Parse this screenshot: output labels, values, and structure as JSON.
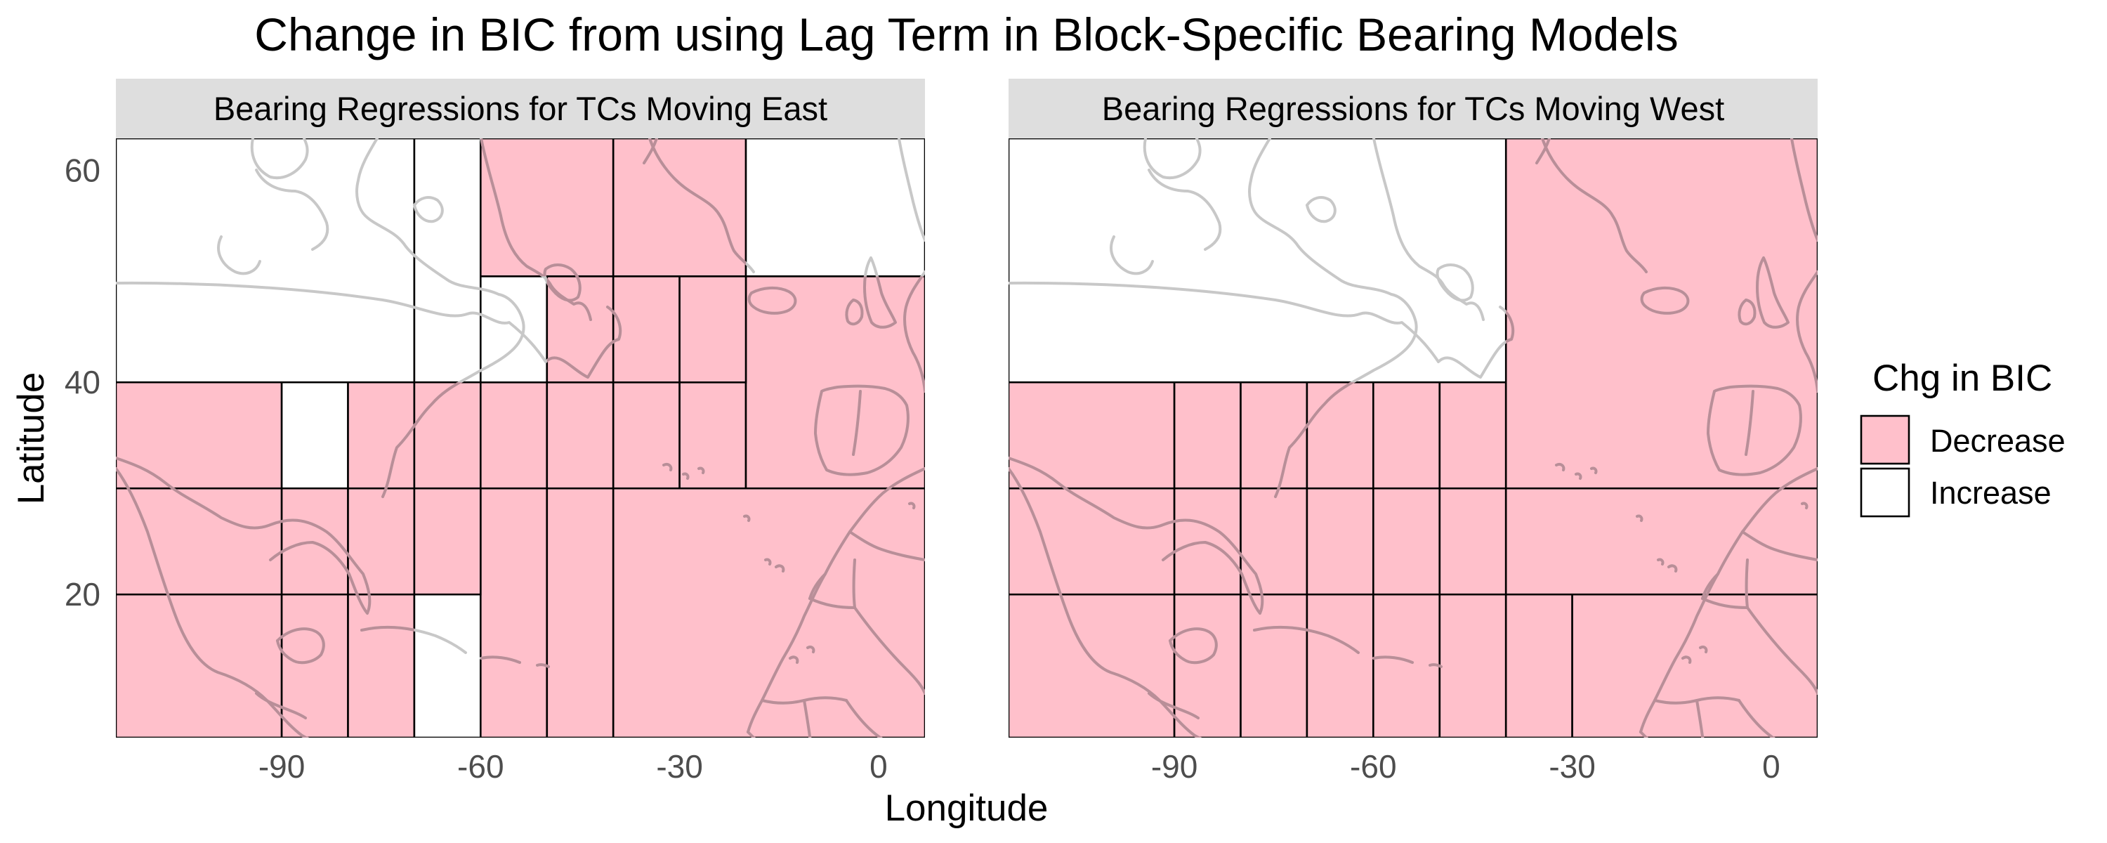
{
  "title": "Change in BIC from using Lag Term in Block-Specific Bearing Models",
  "x_axis_title": "Longitude",
  "y_axis_title": "Latitude",
  "x_extent": [
    -115,
    7
  ],
  "y_extent": [
    6.5,
    63
  ],
  "x_ticks": [
    -90,
    -60,
    -30,
    0
  ],
  "y_ticks": [
    20,
    40,
    60
  ],
  "colors": {
    "decrease": "#ffc0cb",
    "increase": "#ffffff",
    "strip": "#dedede",
    "land": "#c8c8c8"
  },
  "legend": {
    "title": "Chg in BIC",
    "items": [
      {
        "key": "decrease",
        "label": "Decrease",
        "color": "#ffc0cb"
      },
      {
        "key": "increase",
        "label": "Increase",
        "color": "#ffffff"
      }
    ]
  },
  "panels": [
    {
      "strip": "Bearing Regressions for TCs Moving East",
      "blocks": [
        {
          "lon": [
            -115,
            -90
          ],
          "lat": [
            6.5,
            20
          ],
          "change": "decrease"
        },
        {
          "lon": [
            -90,
            -80
          ],
          "lat": [
            6.5,
            20
          ],
          "change": "decrease"
        },
        {
          "lon": [
            -80,
            -70
          ],
          "lat": [
            6.5,
            20
          ],
          "change": "decrease"
        },
        {
          "lon": [
            -70,
            -60
          ],
          "lat": [
            6.5,
            20
          ],
          "change": "increase"
        },
        {
          "lon": [
            -60,
            -50
          ],
          "lat": [
            6.5,
            30
          ],
          "change": "decrease"
        },
        {
          "lon": [
            -50,
            -40
          ],
          "lat": [
            6.5,
            30
          ],
          "change": "decrease"
        },
        {
          "lon": [
            -40,
            7
          ],
          "lat": [
            6.5,
            30
          ],
          "change": "decrease"
        },
        {
          "lon": [
            -115,
            -90
          ],
          "lat": [
            20,
            30
          ],
          "change": "decrease"
        },
        {
          "lon": [
            -90,
            -80
          ],
          "lat": [
            20,
            30
          ],
          "change": "decrease"
        },
        {
          "lon": [
            -80,
            -70
          ],
          "lat": [
            20,
            30
          ],
          "change": "decrease"
        },
        {
          "lon": [
            -70,
            -60
          ],
          "lat": [
            20,
            30
          ],
          "change": "decrease"
        },
        {
          "lon": [
            -115,
            -90
          ],
          "lat": [
            30,
            40
          ],
          "change": "decrease"
        },
        {
          "lon": [
            -90,
            -80
          ],
          "lat": [
            30,
            40
          ],
          "change": "increase"
        },
        {
          "lon": [
            -80,
            -70
          ],
          "lat": [
            30,
            40
          ],
          "change": "decrease"
        },
        {
          "lon": [
            -70,
            -60
          ],
          "lat": [
            30,
            40
          ],
          "change": "decrease"
        },
        {
          "lon": [
            -60,
            -50
          ],
          "lat": [
            30,
            40
          ],
          "change": "decrease"
        },
        {
          "lon": [
            -50,
            -40
          ],
          "lat": [
            30,
            40
          ],
          "change": "decrease"
        },
        {
          "lon": [
            -40,
            -30
          ],
          "lat": [
            30,
            40
          ],
          "change": "decrease"
        },
        {
          "lon": [
            -30,
            -20
          ],
          "lat": [
            30,
            40
          ],
          "change": "decrease"
        },
        {
          "lon": [
            -20,
            7
          ],
          "lat": [
            30,
            50
          ],
          "change": "decrease"
        },
        {
          "lon": [
            -115,
            -70
          ],
          "lat": [
            40,
            63
          ],
          "change": "increase"
        },
        {
          "lon": [
            -70,
            -60
          ],
          "lat": [
            40,
            63
          ],
          "change": "increase"
        },
        {
          "lon": [
            -60,
            -50
          ],
          "lat": [
            40,
            50
          ],
          "change": "increase"
        },
        {
          "lon": [
            -50,
            -40
          ],
          "lat": [
            40,
            50
          ],
          "change": "decrease"
        },
        {
          "lon": [
            -40,
            -30
          ],
          "lat": [
            40,
            50
          ],
          "change": "decrease"
        },
        {
          "lon": [
            -30,
            -20
          ],
          "lat": [
            40,
            50
          ],
          "change": "decrease"
        },
        {
          "lon": [
            -60,
            -40
          ],
          "lat": [
            50,
            63
          ],
          "change": "decrease"
        },
        {
          "lon": [
            -40,
            -20
          ],
          "lat": [
            50,
            63
          ],
          "change": "decrease"
        },
        {
          "lon": [
            -20,
            7
          ],
          "lat": [
            50,
            63
          ],
          "change": "increase"
        }
      ]
    },
    {
      "strip": "Bearing Regressions for TCs Moving West",
      "blocks": [
        {
          "lon": [
            -115,
            -90
          ],
          "lat": [
            6.5,
            20
          ],
          "change": "decrease"
        },
        {
          "lon": [
            -90,
            -80
          ],
          "lat": [
            6.5,
            20
          ],
          "change": "decrease"
        },
        {
          "lon": [
            -80,
            -70
          ],
          "lat": [
            6.5,
            20
          ],
          "change": "decrease"
        },
        {
          "lon": [
            -70,
            -60
          ],
          "lat": [
            6.5,
            20
          ],
          "change": "decrease"
        },
        {
          "lon": [
            -60,
            -50
          ],
          "lat": [
            6.5,
            20
          ],
          "change": "decrease"
        },
        {
          "lon": [
            -50,
            -40
          ],
          "lat": [
            6.5,
            20
          ],
          "change": "decrease"
        },
        {
          "lon": [
            -40,
            -30
          ],
          "lat": [
            6.5,
            20
          ],
          "change": "decrease"
        },
        {
          "lon": [
            -30,
            7
          ],
          "lat": [
            6.5,
            20
          ],
          "change": "decrease"
        },
        {
          "lon": [
            -115,
            -90
          ],
          "lat": [
            20,
            30
          ],
          "change": "decrease"
        },
        {
          "lon": [
            -90,
            -80
          ],
          "lat": [
            20,
            30
          ],
          "change": "decrease"
        },
        {
          "lon": [
            -80,
            -70
          ],
          "lat": [
            20,
            30
          ],
          "change": "decrease"
        },
        {
          "lon": [
            -70,
            -60
          ],
          "lat": [
            20,
            30
          ],
          "change": "decrease"
        },
        {
          "lon": [
            -60,
            -50
          ],
          "lat": [
            20,
            30
          ],
          "change": "decrease"
        },
        {
          "lon": [
            -50,
            -40
          ],
          "lat": [
            20,
            30
          ],
          "change": "decrease"
        },
        {
          "lon": [
            -40,
            7
          ],
          "lat": [
            20,
            30
          ],
          "change": "decrease"
        },
        {
          "lon": [
            -115,
            -90
          ],
          "lat": [
            30,
            40
          ],
          "change": "decrease"
        },
        {
          "lon": [
            -90,
            -80
          ],
          "lat": [
            30,
            40
          ],
          "change": "decrease"
        },
        {
          "lon": [
            -80,
            -70
          ],
          "lat": [
            30,
            40
          ],
          "change": "decrease"
        },
        {
          "lon": [
            -70,
            -60
          ],
          "lat": [
            30,
            40
          ],
          "change": "decrease"
        },
        {
          "lon": [
            -60,
            -50
          ],
          "lat": [
            30,
            40
          ],
          "change": "decrease"
        },
        {
          "lon": [
            -50,
            -40
          ],
          "lat": [
            30,
            40
          ],
          "change": "decrease"
        },
        {
          "lon": [
            -40,
            7
          ],
          "lat": [
            30,
            63
          ],
          "change": "decrease"
        },
        {
          "lon": [
            -115,
            -40
          ],
          "lat": [
            40,
            63
          ],
          "change": "increase"
        }
      ]
    }
  ]
}
